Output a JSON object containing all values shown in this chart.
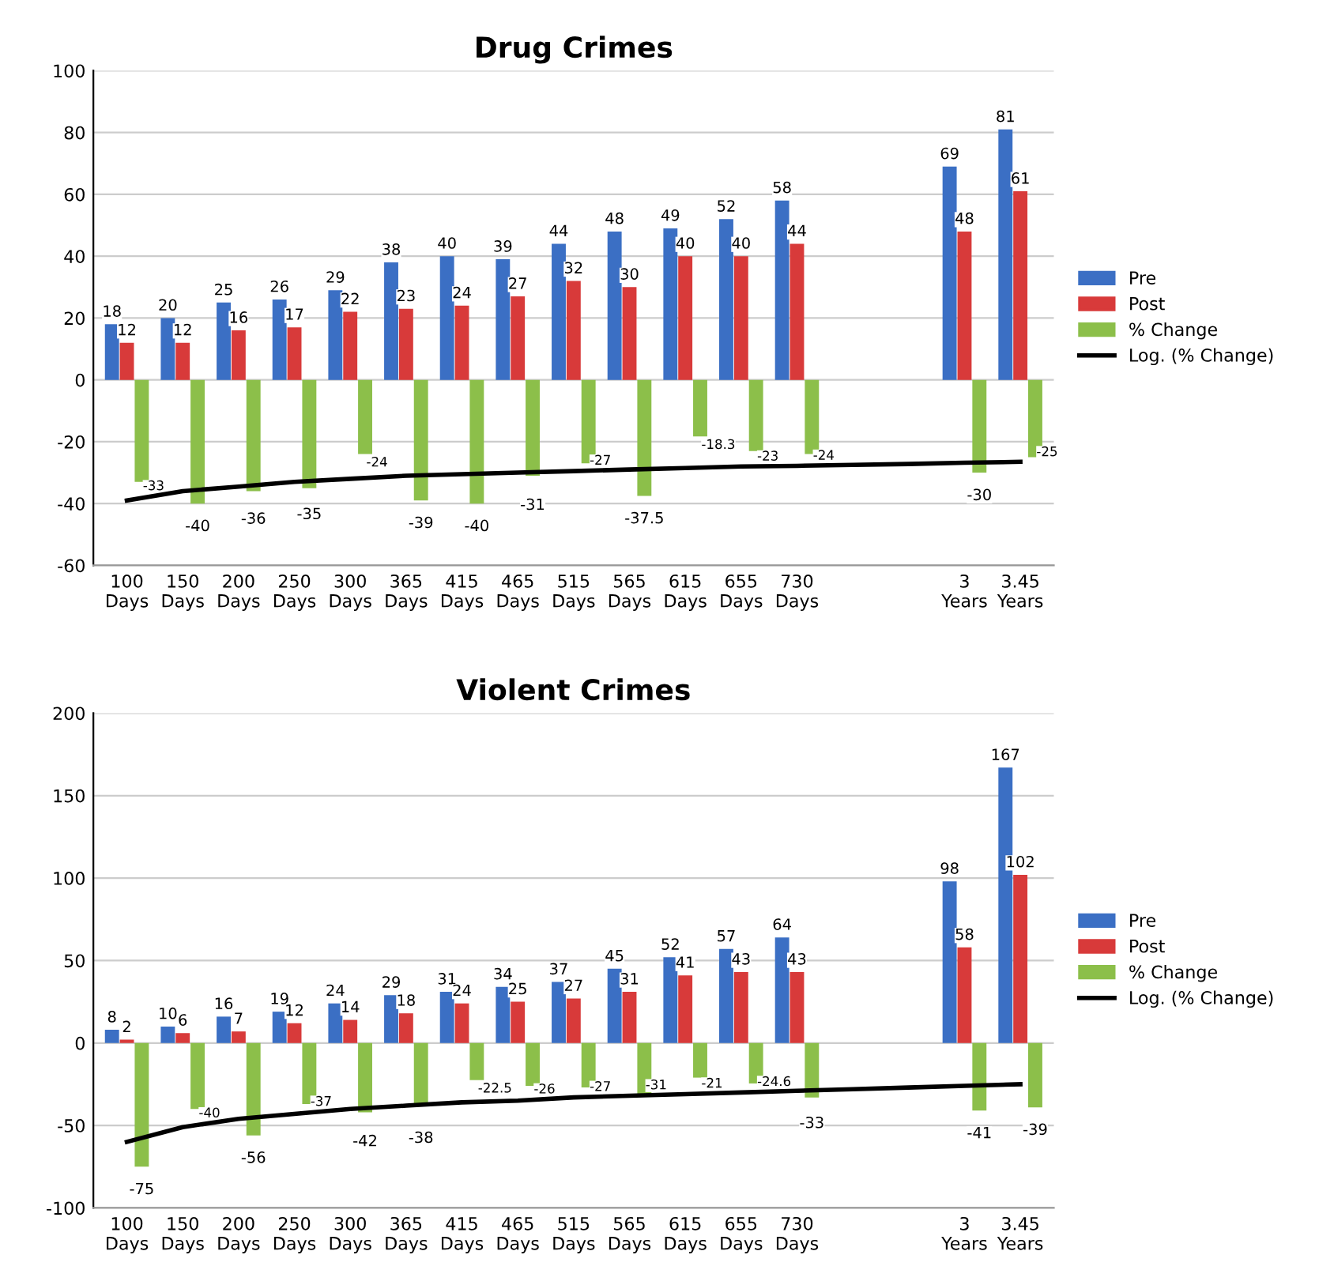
{
  "chart_data": [
    {
      "type": "bar",
      "title": "Drug Crimes",
      "categories": [
        "100 Days",
        "150 Days",
        "200 Days",
        "250 Days",
        "300 Days",
        "365 Days",
        "415 Days",
        "465 Days",
        "515 Days",
        "565 Days",
        "615 Days",
        "655 Days",
        "730 Days",
        null,
        null,
        "3 Years",
        "3.45 Years"
      ],
      "series": [
        {
          "name": "Pre",
          "color": "#3b6fc4",
          "values": [
            18,
            20,
            25,
            26,
            29,
            38,
            40,
            39,
            44,
            48,
            49,
            52,
            58,
            null,
            null,
            69,
            81
          ],
          "value_labels": [
            "18",
            "20",
            "25",
            "26",
            "29",
            "38",
            "40",
            "39",
            "44",
            "48",
            "49",
            "52",
            "58",
            null,
            null,
            "69",
            "81"
          ]
        },
        {
          "name": "Post",
          "color": "#d83a3a",
          "values": [
            12,
            12,
            16,
            17,
            22,
            23,
            24,
            27,
            32,
            30,
            40,
            40,
            44,
            null,
            null,
            48,
            61
          ],
          "value_labels": [
            "12",
            "12",
            "16",
            "17",
            "22",
            "23",
            "24",
            "27",
            "32",
            "30",
            "40",
            "40",
            "44",
            null,
            null,
            "48",
            "61"
          ]
        },
        {
          "name": "% Change",
          "color": "#8cbf4a",
          "values": [
            -33,
            -40,
            -36,
            -35,
            -24,
            -39,
            -40,
            -31,
            -27,
            -37.5,
            -18.3,
            -23,
            -24,
            null,
            null,
            -30,
            -25
          ],
          "value_labels": [
            "-33",
            "-40",
            "-36",
            "-35",
            "-24",
            "-39",
            "-40",
            "-31",
            "-27",
            "-37.5",
            "-18.3",
            "-23",
            "-24",
            null,
            null,
            "-30",
            "-25"
          ]
        },
        {
          "name": "Log. (% Change)",
          "type": "line",
          "color": "#000000",
          "values": [
            -39,
            -36,
            -34.5,
            -33,
            -32,
            -31,
            -30.5,
            -30,
            -29.5,
            -29,
            -28.5,
            -28,
            -27.8,
            -27.5,
            -27.2,
            -26.8,
            -26.5
          ]
        }
      ],
      "ylim": [
        -60,
        100
      ],
      "yticks": [
        -60,
        -40,
        -20,
        0,
        20,
        40,
        60,
        80,
        100
      ],
      "grid": "y",
      "legend": "right",
      "marker": "none",
      "line_style": "solid"
    },
    {
      "type": "bar",
      "title": "Violent Crimes",
      "categories": [
        "100 Days",
        "150 Days",
        "200 Days",
        "250 Days",
        "300 Days",
        "365 Days",
        "415 Days",
        "465 Days",
        "515 Days",
        "565 Days",
        "615 Days",
        "655 Days",
        "730 Days",
        null,
        null,
        "3 Years",
        "3.45 Years"
      ],
      "series": [
        {
          "name": "Pre",
          "color": "#3b6fc4",
          "values": [
            8,
            10,
            16,
            19,
            24,
            29,
            31,
            34,
            37,
            45,
            52,
            57,
            64,
            null,
            null,
            98,
            167
          ],
          "value_labels": [
            "8",
            "10",
            "16",
            "19",
            "24",
            "29",
            "31",
            "34",
            "37",
            "45",
            "52",
            "57",
            "64",
            null,
            null,
            "98",
            "167"
          ]
        },
        {
          "name": "Post",
          "color": "#d83a3a",
          "values": [
            2,
            6,
            7,
            12,
            14,
            18,
            24,
            25,
            27,
            31,
            41,
            43,
            43,
            null,
            null,
            58,
            102
          ],
          "value_labels": [
            "2",
            "6",
            "7",
            "12",
            "14",
            "18",
            "24",
            "25",
            "27",
            "31",
            "41",
            "43",
            "43",
            null,
            null,
            "58",
            "102"
          ]
        },
        {
          "name": "% Change",
          "color": "#8cbf4a",
          "values": [
            -75,
            -40,
            -56,
            -37,
            -42,
            -38,
            -22.5,
            -26,
            -27,
            -31,
            -21,
            -24.6,
            -33,
            null,
            null,
            -41,
            -39
          ],
          "value_labels": [
            "-75",
            "-40",
            "-56",
            "-37",
            "-42",
            "-38",
            "-22.5",
            "-26",
            "-27",
            "-31",
            "-21",
            "-24.6",
            "-33",
            null,
            null,
            "-41",
            "-39"
          ]
        },
        {
          "name": "Log. (% Change)",
          "type": "line",
          "color": "#000000",
          "values": [
            -60,
            -51,
            -46,
            -43,
            -40,
            -38,
            -36,
            -35,
            -33,
            -32,
            -31,
            -30,
            -29,
            -28,
            -27,
            -26,
            -25
          ]
        }
      ],
      "ylim": [
        -100,
        200
      ],
      "yticks": [
        -100,
        -50,
        0,
        50,
        100,
        150,
        200
      ],
      "grid": "y",
      "legend": "right",
      "marker": "none",
      "line_style": "solid"
    }
  ]
}
